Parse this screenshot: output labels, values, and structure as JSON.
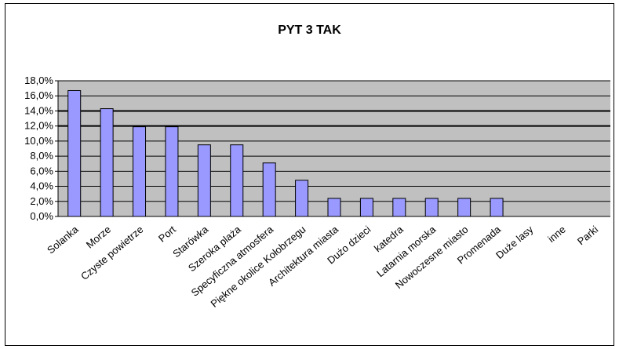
{
  "chart_data": {
    "type": "bar",
    "title": "PYT 3 TAK",
    "xlabel": "",
    "ylabel": "",
    "ylim": [
      0,
      18
    ],
    "y_ticks": [
      "0,0%",
      "2,0%",
      "4,0%",
      "6,0%",
      "8,0%",
      "10,0%",
      "12,0%",
      "14,0%",
      "16,0%",
      "18,0%"
    ],
    "grid": true,
    "legend": "none",
    "categories": [
      "Solanka",
      "Morze",
      "Czyste powietrze",
      "Port",
      "Starówka",
      "Szeroka plaża",
      "Specyficzna atmosfera",
      "Piękne okolice Kołobrzegu",
      "Architektura miasta",
      "Dużo dzieci",
      "katedra",
      "Latarnia morska",
      "Nowoczesne miasto",
      "Promenada",
      "Duże lasy",
      "inne",
      "Parki"
    ],
    "values": [
      16.7,
      14.3,
      11.9,
      11.9,
      9.5,
      9.5,
      7.1,
      4.8,
      2.4,
      2.4,
      2.4,
      2.4,
      2.4,
      2.4,
      0,
      0,
      0
    ],
    "colors": {
      "plot_bg": "#c0c0c0",
      "bar_fill": "#9999ff",
      "bar_stroke": "#000000",
      "grid": "#000000"
    }
  }
}
